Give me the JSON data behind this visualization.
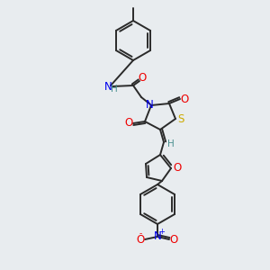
{
  "background_color": "#e8ecef",
  "bond_color": "#2a2a2a",
  "atom_colors": {
    "N": "#0000ee",
    "O": "#ee0000",
    "S": "#ccaa00",
    "H": "#4a9090",
    "C": "#2a2a2a"
  },
  "figsize": [
    3.0,
    3.0
  ],
  "dpi": 100
}
